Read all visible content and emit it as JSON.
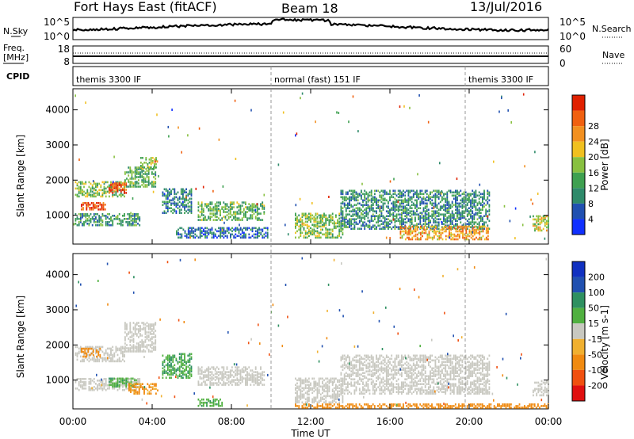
{
  "header": {
    "radar": "Fort Hays East (fitACF)",
    "beam": "Beam 18",
    "date": "13/Jul/2016"
  },
  "side_labels": {
    "nsky": "N.Sky",
    "freq": "Freq.",
    "mhz": "[MHz]",
    "cpid": "CPID",
    "nsearch": "N.Search",
    "nave": "Nave"
  },
  "noise_panel": {
    "left_top": "10^5",
    "left_bottom": "10^0",
    "right_top": "10^5",
    "right_bottom": "10^0"
  },
  "freq_panel": {
    "left_top": "18",
    "left_bottom": "8",
    "right_top": "60",
    "right_bottom": "0"
  },
  "cpid_labels": [
    {
      "text": "themis 3300 IF",
      "start_hour": 0.0
    },
    {
      "text": "normal (fast) 151 IF",
      "start_hour": 10.0
    },
    {
      "text": "themis 3300 IF",
      "start_hour": 19.8
    }
  ],
  "time_axis": {
    "ticks": [
      "00:00",
      "04:00",
      "08:00",
      "12:00",
      "16:00",
      "20:00",
      "00:00"
    ],
    "label": "Time UT"
  },
  "range_axis": {
    "label": "Slant Range [km]",
    "ticks": [
      "1000",
      "2000",
      "3000",
      "4000"
    ]
  },
  "power_colorbar": {
    "label": "Power [dB]",
    "ticks": [
      "4",
      "8",
      "12",
      "16",
      "20",
      "24",
      "28"
    ]
  },
  "velocity_colorbar": {
    "label": "Velocity [m s-1]",
    "ticks": [
      "-200",
      "-100",
      "-50",
      "-15",
      "15",
      "50",
      "100",
      "200"
    ]
  },
  "colors": {
    "power": [
      "#1030ff",
      "#2050b0",
      "#2e8a6a",
      "#3ea050",
      "#88c040",
      "#f0c020",
      "#f29020",
      "#f06010",
      "#e02000"
    ],
    "velocity": [
      "#e01010",
      "#f05010",
      "#f08a10",
      "#f0b030",
      "#c8c8c0",
      "#50b040",
      "#2e9060",
      "#2050b0",
      "#1030c0"
    ],
    "ground_scatter": "#c8c8c0"
  },
  "chart_data": [
    {
      "type": "heatmap",
      "title": "Power [dB]",
      "xlabel": "Time UT",
      "ylabel": "Slant Range [km]",
      "xlim": [
        0,
        24
      ],
      "ylim": [
        180,
        4600
      ],
      "zlim": [
        0,
        30
      ],
      "regions": [
        {
          "t0": 0.1,
          "t1": 2.6,
          "r0": 1520,
          "r1": 1950,
          "z": 14
        },
        {
          "t0": 1.8,
          "t1": 2.7,
          "r0": 1620,
          "r1": 1900,
          "z": 26
        },
        {
          "t0": 2.6,
          "t1": 4.2,
          "r0": 1800,
          "r1": 2350,
          "z": 12
        },
        {
          "t0": 3.4,
          "t1": 4.2,
          "r0": 2300,
          "r1": 2650,
          "z": 15
        },
        {
          "t0": 0.1,
          "t1": 3.4,
          "r0": 700,
          "r1": 1050,
          "z": 10
        },
        {
          "t0": 4.5,
          "t1": 6.0,
          "r0": 1050,
          "r1": 1750,
          "z": 8
        },
        {
          "t0": 6.3,
          "t1": 9.7,
          "r0": 850,
          "r1": 1350,
          "z": 12
        },
        {
          "t0": 5.2,
          "t1": 9.8,
          "r0": 350,
          "r1": 650,
          "z": 6
        },
        {
          "t0": 11.2,
          "t1": 13.6,
          "r0": 350,
          "r1": 1050,
          "z": 14
        },
        {
          "t0": 13.5,
          "t1": 21.0,
          "r0": 600,
          "r1": 1700,
          "z": 9
        },
        {
          "t0": 16.5,
          "t1": 21.0,
          "r0": 300,
          "r1": 700,
          "z": 21
        },
        {
          "t0": 23.2,
          "t1": 24.0,
          "r0": 550,
          "r1": 1000,
          "z": 17
        },
        {
          "t0": 0.4,
          "t1": 1.6,
          "r0": 1150,
          "r1": 1350,
          "z": 26
        }
      ]
    },
    {
      "type": "heatmap",
      "title": "Velocity [m s-1]",
      "xlabel": "Time UT",
      "ylabel": "Slant Range [km]",
      "xlim": [
        0,
        24
      ],
      "ylim": [
        180,
        4600
      ],
      "zlim": [
        -250,
        250
      ],
      "regions": [
        {
          "t0": 0.1,
          "t1": 2.6,
          "r0": 1520,
          "r1": 1950,
          "z": 0,
          "ground": true
        },
        {
          "t0": 0.4,
          "t1": 1.4,
          "r0": 1650,
          "r1": 1900,
          "z": -70
        },
        {
          "t0": 2.6,
          "t1": 4.2,
          "r0": 1800,
          "r1": 2650,
          "z": 0,
          "ground": true
        },
        {
          "t0": 0.1,
          "t1": 3.4,
          "r0": 700,
          "r1": 1050,
          "z": 0,
          "ground": true
        },
        {
          "t0": 1.8,
          "t1": 3.2,
          "r0": 800,
          "r1": 1050,
          "z": 40
        },
        {
          "t0": 2.8,
          "t1": 4.3,
          "r0": 600,
          "r1": 900,
          "z": -60
        },
        {
          "t0": 4.5,
          "t1": 6.0,
          "r0": 1050,
          "r1": 1750,
          "z": 45
        },
        {
          "t0": 6.3,
          "t1": 9.7,
          "r0": 850,
          "r1": 1350,
          "z": 0,
          "ground": true
        },
        {
          "t0": 6.3,
          "t1": 7.5,
          "r0": 250,
          "r1": 450,
          "z": 35
        },
        {
          "t0": 11.2,
          "t1": 24.0,
          "r0": 200,
          "r1": 320,
          "z": -80
        },
        {
          "t0": 11.2,
          "t1": 13.6,
          "r0": 350,
          "r1": 1050,
          "z": 0,
          "ground": true
        },
        {
          "t0": 13.5,
          "t1": 21.0,
          "r0": 600,
          "r1": 1700,
          "z": 0,
          "ground": true
        },
        {
          "t0": 23.2,
          "t1": 24.0,
          "r0": 550,
          "r1": 1000,
          "z": 0,
          "ground": true
        }
      ]
    }
  ]
}
